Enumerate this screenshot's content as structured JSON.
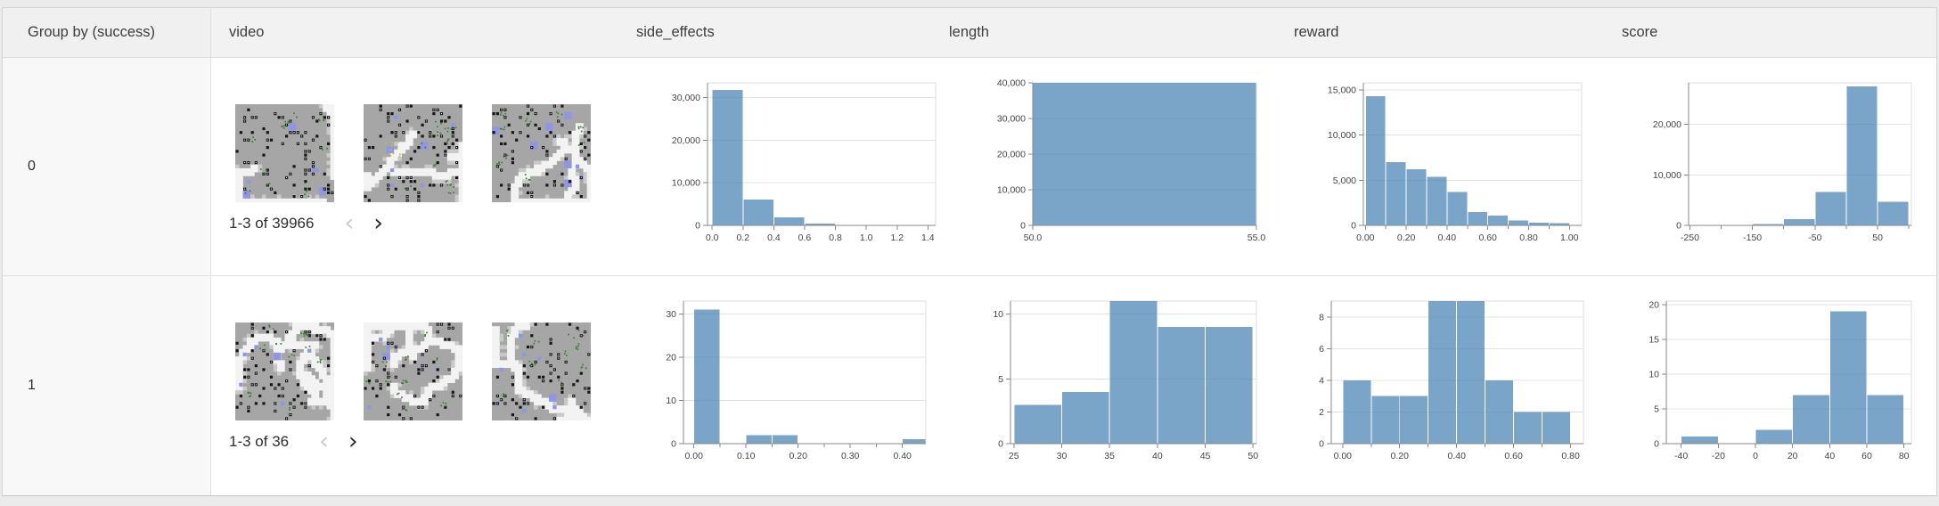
{
  "table": {
    "columns": [
      {
        "key": "group",
        "label": "Group by (success)"
      },
      {
        "key": "video",
        "label": "video"
      },
      {
        "key": "side_effects",
        "label": "side_effects"
      },
      {
        "key": "length",
        "label": "length"
      },
      {
        "key": "reward",
        "label": "reward"
      },
      {
        "key": "score",
        "label": "score"
      }
    ],
    "rows": [
      {
        "group": "0",
        "video": {
          "pagination": "1-3 of 39966",
          "prev_enabled": false,
          "next_enabled": true,
          "thumbnail_count": 3
        }
      },
      {
        "group": "1",
        "video": {
          "pagination": "1-3 of 36",
          "prev_enabled": false,
          "next_enabled": true,
          "thumbnail_count": 3
        }
      }
    ]
  },
  "icons": {
    "prev_arrow": "‹",
    "next_arrow": "›"
  },
  "colors": {
    "histogram_bar": "#4682b4",
    "histogram_bar_opacity": 0.72,
    "axis_line": "#888888",
    "plot_border": "#dddddd",
    "gridline": "#e3e3e3",
    "tick_label": "#454545",
    "header_bg": "#f2f2f2",
    "group_col_bg": "#f8f8f8"
  },
  "chart_data": [
    {
      "group": "0",
      "column": "side_effects",
      "type": "bar",
      "bin_edges": [
        0,
        0.2,
        0.4,
        0.6,
        0.8,
        1.0,
        1.2,
        1.4
      ],
      "values": [
        31800,
        6100,
        1900,
        450,
        120,
        0,
        0
      ],
      "xlim": [
        -0.03,
        1.45
      ],
      "ylim": [
        0,
        33500
      ],
      "x_ticks": [
        {
          "v": 0,
          "label": "0.0"
        },
        {
          "v": 0.2,
          "label": "0.2"
        },
        {
          "v": 0.4,
          "label": "0.4"
        },
        {
          "v": 0.6,
          "label": "0.6"
        },
        {
          "v": 0.8,
          "label": "0.8"
        },
        {
          "v": 1.0,
          "label": "1.0"
        },
        {
          "v": 1.2,
          "label": "1.2"
        },
        {
          "v": 1.4,
          "label": "1.4"
        }
      ],
      "x_minor": [],
      "y_ticks": [
        {
          "v": 0,
          "label": "0"
        },
        {
          "v": 10000,
          "label": "10,000"
        },
        {
          "v": 20000,
          "label": "20,000"
        },
        {
          "v": 30000,
          "label": "30,000"
        }
      ]
    },
    {
      "group": "0",
      "column": "length",
      "type": "bar",
      "bin_edges": [
        50,
        55
      ],
      "values": [
        39966
      ],
      "xlim": [
        50,
        55
      ],
      "ylim": [
        0,
        40000
      ],
      "x_ticks": [
        {
          "v": 50,
          "label": "50.0"
        },
        {
          "v": 55,
          "label": "55.0"
        }
      ],
      "x_minor": [],
      "y_ticks": [
        {
          "v": 0,
          "label": "0"
        },
        {
          "v": 10000,
          "label": "10,000"
        },
        {
          "v": 20000,
          "label": "20,000"
        },
        {
          "v": 30000,
          "label": "30,000"
        },
        {
          "v": 40000,
          "label": "40,000"
        }
      ]
    },
    {
      "group": "0",
      "column": "reward",
      "type": "bar",
      "bin_edges": [
        0,
        0.1,
        0.2,
        0.3,
        0.4,
        0.5,
        0.6,
        0.7,
        0.8,
        0.9,
        1.0
      ],
      "values": [
        14300,
        7000,
        6200,
        5400,
        3700,
        1500,
        1100,
        550,
        300,
        250
      ],
      "xlim": [
        -0.01,
        1.06
      ],
      "ylim": [
        0,
        15800
      ],
      "x_ticks": [
        {
          "v": 0,
          "label": "0.00"
        },
        {
          "v": 0.2,
          "label": "0.20"
        },
        {
          "v": 0.4,
          "label": "0.40"
        },
        {
          "v": 0.6,
          "label": "0.60"
        },
        {
          "v": 0.8,
          "label": "0.80"
        },
        {
          "v": 1.0,
          "label": "1.00"
        }
      ],
      "x_minor": [
        0.1,
        0.3,
        0.5,
        0.7,
        0.9
      ],
      "y_ticks": [
        {
          "v": 0,
          "label": "0"
        },
        {
          "v": 5000,
          "label": "5,000"
        },
        {
          "v": 10000,
          "label": "10,000"
        },
        {
          "v": 15000,
          "label": "15,000"
        }
      ]
    },
    {
      "group": "0",
      "column": "score",
      "type": "bar",
      "bin_edges": [
        -250,
        -200,
        -150,
        -100,
        -50,
        0,
        50,
        100
      ],
      "values": [
        100,
        120,
        250,
        1200,
        6600,
        27500,
        4700
      ],
      "xlim": [
        -252,
        104
      ],
      "ylim": [
        0,
        28200
      ],
      "x_ticks": [
        {
          "v": -250,
          "label": "-250"
        },
        {
          "v": -150,
          "label": "-150"
        },
        {
          "v": -50,
          "label": "-50"
        },
        {
          "v": 50,
          "label": "50"
        }
      ],
      "x_minor": [
        -200,
        -100,
        0,
        100
      ],
      "y_ticks": [
        {
          "v": 0,
          "label": "0"
        },
        {
          "v": 10000,
          "label": "10,000"
        },
        {
          "v": 20000,
          "label": "20,000"
        }
      ]
    },
    {
      "group": "1",
      "column": "side_effects",
      "type": "bar",
      "bin_edges": [
        0,
        0.05,
        0.1,
        0.15,
        0.2,
        0.25,
        0.3,
        0.35,
        0.4,
        0.45
      ],
      "values": [
        31,
        0,
        2,
        2,
        0,
        0,
        0,
        0,
        1
      ],
      "xlim": [
        -0.02,
        0.445
      ],
      "ylim": [
        0,
        33
      ],
      "x_ticks": [
        {
          "v": 0,
          "label": "0.00"
        },
        {
          "v": 0.1,
          "label": "0.10"
        },
        {
          "v": 0.2,
          "label": "0.20"
        },
        {
          "v": 0.3,
          "label": "0.30"
        },
        {
          "v": 0.4,
          "label": "0.40"
        }
      ],
      "x_minor": [
        0.05,
        0.15,
        0.25,
        0.35
      ],
      "y_ticks": [
        {
          "v": 0,
          "label": "0"
        },
        {
          "v": 10,
          "label": "10"
        },
        {
          "v": 20,
          "label": "20"
        },
        {
          "v": 30,
          "label": "30"
        }
      ]
    },
    {
      "group": "1",
      "column": "length",
      "type": "bar",
      "bin_edges": [
        25,
        30,
        35,
        40,
        45,
        50
      ],
      "values": [
        3,
        4,
        11,
        9,
        9
      ],
      "xlim": [
        24.65,
        50.35
      ],
      "ylim": [
        0,
        11
      ],
      "x_ticks": [
        {
          "v": 25,
          "label": "25"
        },
        {
          "v": 30,
          "label": "30"
        },
        {
          "v": 35,
          "label": "35"
        },
        {
          "v": 40,
          "label": "40"
        },
        {
          "v": 45,
          "label": "45"
        },
        {
          "v": 50,
          "label": "50"
        }
      ],
      "x_minor": [],
      "y_ticks": [
        {
          "v": 0,
          "label": "0"
        },
        {
          "v": 5,
          "label": "5"
        },
        {
          "v": 10,
          "label": "10"
        }
      ]
    },
    {
      "group": "1",
      "column": "reward",
      "type": "bar",
      "bin_edges": [
        0,
        0.1,
        0.2,
        0.3,
        0.4,
        0.5,
        0.6,
        0.7,
        0.8
      ],
      "values": [
        4,
        3,
        3,
        9,
        9,
        4,
        2,
        2
      ],
      "xlim": [
        -0.04,
        0.845
      ],
      "ylim": [
        0,
        9
      ],
      "x_ticks": [
        {
          "v": 0,
          "label": "0.00"
        },
        {
          "v": 0.2,
          "label": "0.20"
        },
        {
          "v": 0.4,
          "label": "0.40"
        },
        {
          "v": 0.6,
          "label": "0.60"
        },
        {
          "v": 0.8,
          "label": "0.80"
        }
      ],
      "x_minor": [
        0.1,
        0.3,
        0.5,
        0.7
      ],
      "y_ticks": [
        {
          "v": 0,
          "label": "0"
        },
        {
          "v": 2,
          "label": "2"
        },
        {
          "v": 4,
          "label": "4"
        },
        {
          "v": 6,
          "label": "6"
        },
        {
          "v": 8,
          "label": "8"
        }
      ]
    },
    {
      "group": "1",
      "column": "score",
      "type": "bar",
      "bin_edges": [
        -40,
        -20,
        0,
        20,
        40,
        60,
        80
      ],
      "values": [
        1,
        0,
        2,
        7,
        19,
        7
      ],
      "xlim": [
        -48,
        84
      ],
      "ylim": [
        0,
        20.5
      ],
      "x_ticks": [
        {
          "v": -40,
          "label": "-40"
        },
        {
          "v": -20,
          "label": "-20"
        },
        {
          "v": 0,
          "label": "0"
        },
        {
          "v": 20,
          "label": "20"
        },
        {
          "v": 40,
          "label": "40"
        },
        {
          "v": 60,
          "label": "60"
        },
        {
          "v": 80,
          "label": "80"
        }
      ],
      "x_minor": [],
      "y_ticks": [
        {
          "v": 0,
          "label": "0"
        },
        {
          "v": 5,
          "label": "5"
        },
        {
          "v": 10,
          "label": "10"
        },
        {
          "v": 15,
          "label": "15"
        },
        {
          "v": 20,
          "label": "20"
        }
      ]
    }
  ]
}
